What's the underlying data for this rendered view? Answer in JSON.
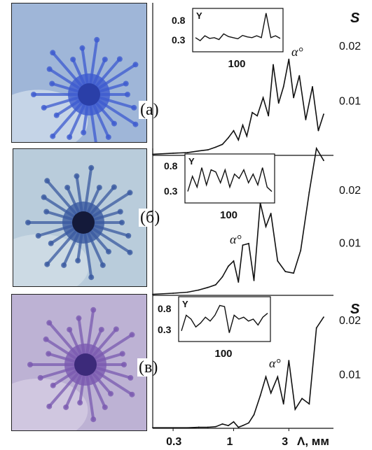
{
  "panels": [
    {
      "tag": "(а)",
      "photo_colors": {
        "bg": "#9fb6d8",
        "core": "#2a3fa8",
        "ring": "#3d5bd0",
        "edge": "#dfe8f2"
      }
    },
    {
      "tag": "(б)",
      "photo_colors": {
        "bg": "#b9ccdb",
        "core": "#141a3a",
        "ring": "#3a5aa0",
        "edge": "#d8e3ea"
      }
    },
    {
      "tag": "(в)",
      "photo_colors": {
        "bg": "#bdb2d4",
        "core": "#3c2a7a",
        "ring": "#7a5ab0",
        "edge": "#dcd5e8"
      }
    }
  ],
  "axis": {
    "s_label": "S",
    "x_unit_label": "Λ, мм",
    "x_ticks": [
      "0.3",
      "1",
      "3"
    ],
    "x_tick_values": [
      0.3,
      1,
      3
    ]
  },
  "chart_data": [
    {
      "type": "line",
      "panel": "а",
      "log_x": true,
      "xlim": [
        0.2,
        6
      ],
      "ylim": [
        0,
        0.027
      ],
      "ylabel": "S",
      "y_ticks": [
        0.01,
        0.02
      ],
      "x": [
        0.2,
        0.3,
        0.4,
        0.5,
        0.6,
        0.7,
        0.8,
        0.9,
        1.0,
        1.1,
        1.2,
        1.3,
        1.45,
        1.6,
        1.8,
        2.0,
        2.2,
        2.45,
        2.7,
        3.0,
        3.3,
        3.7,
        4.2,
        4.8,
        5.4,
        6.0
      ],
      "y": [
        0.0002,
        0.0004,
        0.0005,
        0.0008,
        0.001,
        0.0015,
        0.002,
        0.0032,
        0.0045,
        0.0028,
        0.0055,
        0.0035,
        0.0078,
        0.0072,
        0.0105,
        0.0072,
        0.0165,
        0.0095,
        0.0125,
        0.0175,
        0.0105,
        0.0145,
        0.0065,
        0.0125,
        0.0045,
        0.0075
      ],
      "inset": {
        "ylabel": "Y",
        "y_ticks": [
          "0.8",
          "0.3"
        ],
        "x_tick": "100",
        "x_label": "α°",
        "x": [
          0,
          20,
          40,
          60,
          80,
          100,
          120,
          140,
          160,
          180,
          200,
          220,
          240,
          260,
          280,
          300,
          320,
          340,
          360
        ],
        "y": [
          0.3,
          0.22,
          0.35,
          0.28,
          0.3,
          0.25,
          0.4,
          0.33,
          0.3,
          0.27,
          0.36,
          0.32,
          0.3,
          0.35,
          0.3,
          0.95,
          0.3,
          0.35,
          0.28
        ]
      }
    },
    {
      "type": "line",
      "panel": "б",
      "log_x": true,
      "xlim": [
        0.2,
        6
      ],
      "ylim": [
        0,
        0.027
      ],
      "ylabel": "",
      "y_ticks": [
        0.01,
        0.02
      ],
      "x": [
        0.2,
        0.3,
        0.4,
        0.5,
        0.6,
        0.7,
        0.8,
        0.9,
        1.0,
        1.1,
        1.2,
        1.35,
        1.5,
        1.7,
        1.9,
        2.1,
        2.4,
        2.8,
        3.3,
        3.8,
        4.5,
        5.2,
        6.0
      ],
      "y": [
        0.0002,
        0.0004,
        0.0006,
        0.001,
        0.0015,
        0.002,
        0.0035,
        0.0055,
        0.0065,
        0.0025,
        0.0095,
        0.0098,
        0.0028,
        0.0175,
        0.013,
        0.0155,
        0.0065,
        0.0045,
        0.0042,
        0.0085,
        0.0195,
        0.028,
        0.0255
      ],
      "inset": {
        "ylabel": "Y",
        "y_ticks": [
          "0.8",
          "0.3"
        ],
        "x_tick": "100",
        "x_label": "α°",
        "x": [
          0,
          20,
          40,
          60,
          80,
          100,
          120,
          140,
          160,
          180,
          200,
          220,
          240,
          260,
          280,
          300,
          320,
          340,
          360
        ],
        "y": [
          0.2,
          0.55,
          0.3,
          0.75,
          0.35,
          0.7,
          0.65,
          0.4,
          0.7,
          0.3,
          0.6,
          0.5,
          0.7,
          0.4,
          0.6,
          0.35,
          0.75,
          0.3,
          0.2
        ]
      }
    },
    {
      "type": "line",
      "panel": "в",
      "log_x": true,
      "xlim": [
        0.2,
        6
      ],
      "ylim": [
        0,
        0.024
      ],
      "ylabel": "S",
      "y_ticks": [
        0.01,
        0.02
      ],
      "x": [
        0.2,
        0.3,
        0.4,
        0.5,
        0.6,
        0.7,
        0.8,
        0.9,
        1.0,
        1.1,
        1.2,
        1.35,
        1.5,
        1.7,
        1.9,
        2.1,
        2.4,
        2.7,
        3.0,
        3.4,
        3.9,
        4.5,
        5.2,
        6.0
      ],
      "y": [
        0.0001,
        0.0001,
        0.0001,
        0.0002,
        0.0002,
        0.0003,
        0.0008,
        0.0005,
        0.0012,
        0.0002,
        0.0005,
        0.001,
        0.0025,
        0.006,
        0.0095,
        0.0065,
        0.0095,
        0.0045,
        0.0125,
        0.0035,
        0.0055,
        0.0045,
        0.0185,
        0.0205
      ],
      "inset": {
        "ylabel": "Y",
        "y_ticks": [
          "0.8",
          "0.3"
        ],
        "x_tick": "100",
        "x_label": "α°",
        "x": [
          0,
          20,
          40,
          60,
          80,
          100,
          120,
          140,
          160,
          180,
          200,
          220,
          240,
          260,
          280,
          300,
          320,
          340,
          360
        ],
        "y": [
          0.2,
          0.6,
          0.5,
          0.3,
          0.4,
          0.55,
          0.45,
          0.6,
          0.85,
          0.82,
          0.15,
          0.6,
          0.5,
          0.55,
          0.45,
          0.5,
          0.35,
          0.55,
          0.65
        ]
      }
    }
  ]
}
